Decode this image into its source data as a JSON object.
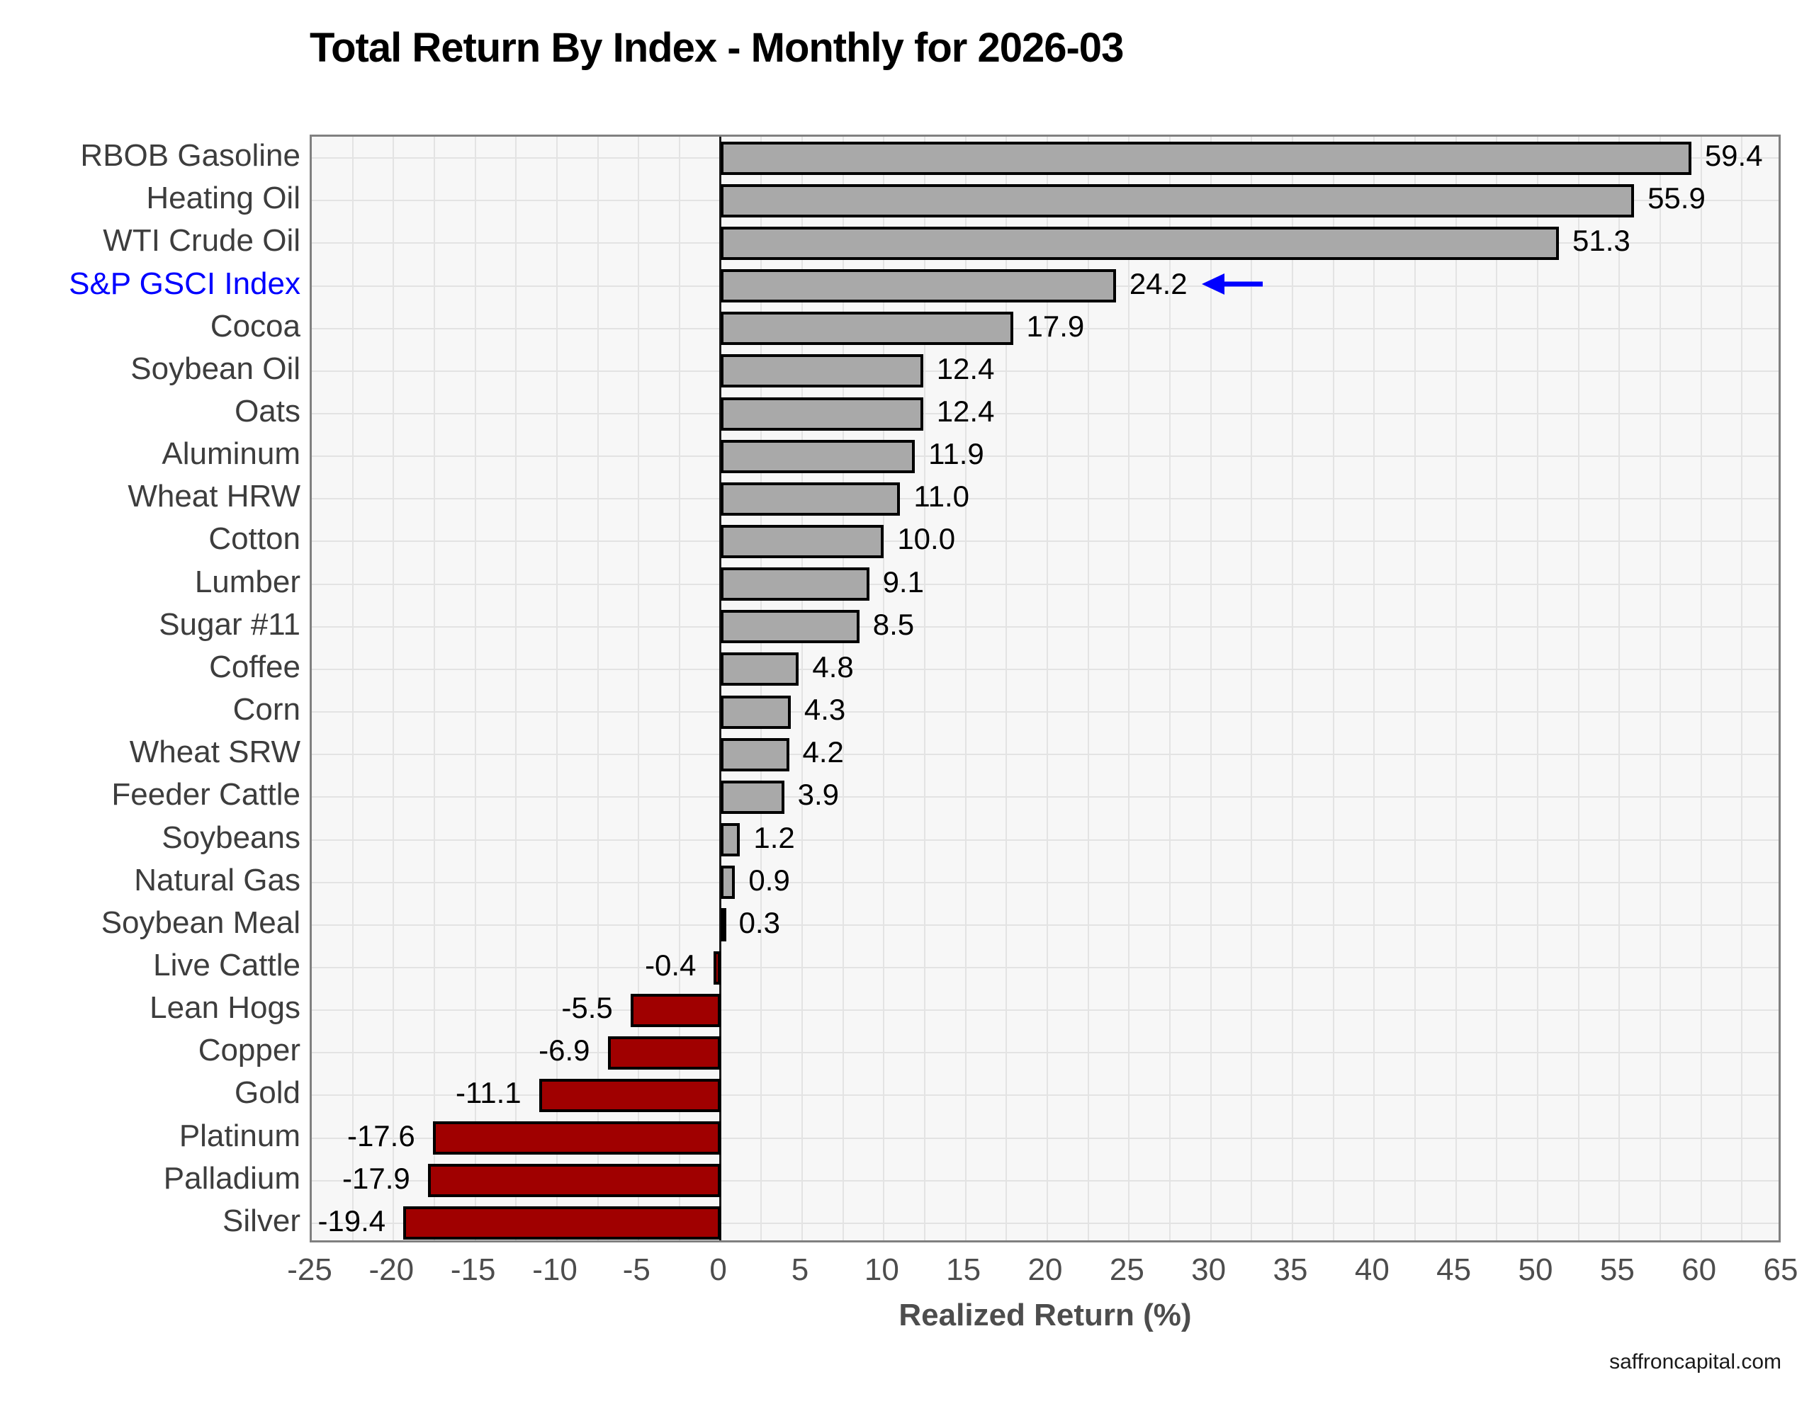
{
  "page": {
    "footer": "saffroncapital.com"
  },
  "chart_data": {
    "type": "bar",
    "orientation": "horizontal",
    "title": "Total Return By Index - Monthly for 2026-03",
    "xlabel": "Realized Return (%)",
    "xlim": [
      -25,
      65
    ],
    "xticks": [
      -25,
      -20,
      -15,
      -10,
      -5,
      0,
      5,
      10,
      15,
      20,
      25,
      30,
      35,
      40,
      45,
      50,
      55,
      60,
      65
    ],
    "minor_grid_step": 2.5,
    "grid": true,
    "legend": false,
    "categories": [
      "RBOB Gasoline",
      "Heating Oil",
      "WTI Crude Oil",
      "S&P GSCI Index",
      "Cocoa",
      "Soybean Oil",
      "Oats",
      "Aluminum",
      "Wheat HRW",
      "Cotton",
      "Lumber",
      "Sugar #11",
      "Coffee",
      "Corn",
      "Wheat SRW",
      "Feeder Cattle",
      "Soybeans",
      "Natural Gas",
      "Soybean Meal",
      "Live Cattle",
      "Lean Hogs",
      "Copper",
      "Gold",
      "Platinum",
      "Palladium",
      "Silver"
    ],
    "values": [
      59.4,
      55.9,
      51.3,
      24.2,
      17.9,
      12.4,
      12.4,
      11.9,
      11.0,
      10.0,
      9.1,
      8.5,
      4.8,
      4.3,
      4.2,
      3.9,
      1.2,
      0.9,
      0.3,
      -0.4,
      -5.5,
      -6.9,
      -11.1,
      -17.6,
      -17.9,
      -19.4
    ],
    "highlight": {
      "category": "S&P GSCI Index",
      "value": 24.2,
      "label_color": "#0000FF",
      "arrow_icon": "left-arrow-icon",
      "arrow_color": "#0000FF"
    },
    "colors": {
      "positive_bar": "#A9A9A9",
      "negative_bar": "#A00000",
      "bar_border": "#000000",
      "zero_line": "#1A1A1A",
      "panel_background": "#F7F7F7",
      "gridline": "#E3E3E3",
      "panel_border": "#808080",
      "title_text": "#000000",
      "tick_text": "#4d4d4d"
    }
  }
}
